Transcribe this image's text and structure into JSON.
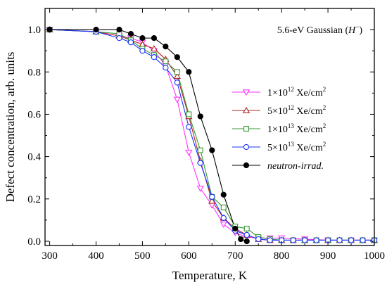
{
  "chart_data": {
    "type": "line",
    "title": "",
    "annotation": {
      "prefix": "5.6-eV Gaussian (",
      "italic": "H",
      "superscript": "−",
      "suffix": ")"
    },
    "xlabel": "Temperature, K",
    "ylabel": "Defect concentration, arb. units",
    "xlim": [
      290,
      1000
    ],
    "ylim": [
      -0.02,
      1.1
    ],
    "xticks": [
      300,
      400,
      500,
      600,
      700,
      800,
      900,
      1000
    ],
    "yticks": [
      0.0,
      0.2,
      0.4,
      0.6,
      0.8,
      1.0
    ],
    "ytick_labels": [
      "0.0",
      "0.2",
      "0.4",
      "0.6",
      "0.8",
      "1.0"
    ],
    "grid": false,
    "legend_position": "center-right",
    "series": [
      {
        "name": "1×10¹² Xe/cm²",
        "label_parts": [
          "1×10",
          "12",
          " Xe/cm",
          "2"
        ],
        "color": "#ff33ff",
        "marker": "triangle-down-open",
        "x": [
          300,
          400,
          450,
          475,
          500,
          525,
          550,
          575,
          600,
          625,
          650,
          675,
          700,
          725,
          750,
          775,
          800,
          850,
          900,
          950,
          1000
        ],
        "y": [
          1.0,
          0.99,
          0.97,
          0.96,
          0.94,
          0.9,
          0.83,
          0.67,
          0.42,
          0.25,
          0.17,
          0.08,
          0.04,
          0.02,
          0.015,
          0.015,
          0.015,
          0.01,
          0.005,
          0.005,
          0.005
        ]
      },
      {
        "name": "5×10¹² Xe/cm²",
        "label_parts": [
          "5×10",
          "12",
          " Xe/cm",
          "2"
        ],
        "color": "#b22222",
        "marker": "triangle-up-open",
        "x": [
          300,
          400,
          450,
          475,
          500,
          525,
          550,
          575,
          600,
          625,
          650,
          675,
          700,
          725,
          750,
          775,
          800,
          825,
          850,
          875,
          900,
          925,
          950,
          975,
          1000
        ],
        "y": [
          1.0,
          0.99,
          0.97,
          0.95,
          0.93,
          0.91,
          0.86,
          0.78,
          0.59,
          0.38,
          0.19,
          0.11,
          0.06,
          0.03,
          0.01,
          0.005,
          0.005,
          0.005,
          0.005,
          0.005,
          0.005,
          0.005,
          0.005,
          0.005,
          0.005
        ]
      },
      {
        "name": "1×10¹³ Xe/cm²",
        "label_parts": [
          "1×10",
          "13",
          " Xe/cm",
          "2"
        ],
        "color": "#339933",
        "marker": "square-open",
        "x": [
          300,
          400,
          450,
          475,
          500,
          525,
          550,
          575,
          600,
          625,
          650,
          675,
          700,
          725,
          750,
          775,
          800,
          825,
          850,
          875,
          900,
          925,
          950,
          975,
          1000
        ],
        "y": [
          1.0,
          0.99,
          0.98,
          0.95,
          0.91,
          0.88,
          0.85,
          0.8,
          0.6,
          0.43,
          0.21,
          0.16,
          0.07,
          0.06,
          0.02,
          0.01,
          0.005,
          0.005,
          0.005,
          0.005,
          0.005,
          0.005,
          0.005,
          0.005,
          0.005
        ]
      },
      {
        "name": "5×10¹³ Xe/cm²",
        "label_parts": [
          "5×10",
          "13",
          " Xe/cm",
          "2"
        ],
        "color": "#1a33ff",
        "marker": "circle-open",
        "x": [
          300,
          400,
          450,
          475,
          500,
          525,
          550,
          575,
          600,
          625,
          650,
          675,
          700,
          725,
          750,
          775,
          800,
          825,
          850,
          875,
          900,
          925,
          950,
          975,
          1000
        ],
        "y": [
          1.0,
          0.99,
          0.96,
          0.94,
          0.9,
          0.87,
          0.82,
          0.75,
          0.54,
          0.37,
          0.21,
          0.11,
          0.05,
          0.03,
          0.01,
          0.005,
          0.005,
          0.005,
          0.005,
          0.005,
          0.005,
          0.005,
          0.005,
          0.005,
          0.005
        ]
      },
      {
        "name": "neutron-irrad.",
        "label_parts": [
          "neutron-irrad."
        ],
        "italic_label": true,
        "color": "#000000",
        "marker": "circle-filled",
        "x": [
          300,
          400,
          450,
          475,
          500,
          525,
          550,
          575,
          600,
          625,
          650,
          675,
          700,
          712,
          725
        ],
        "y": [
          1.0,
          1.0,
          1.0,
          0.98,
          0.96,
          0.96,
          0.92,
          0.87,
          0.8,
          0.59,
          0.43,
          0.22,
          0.06,
          0.01,
          0.0
        ]
      }
    ]
  }
}
